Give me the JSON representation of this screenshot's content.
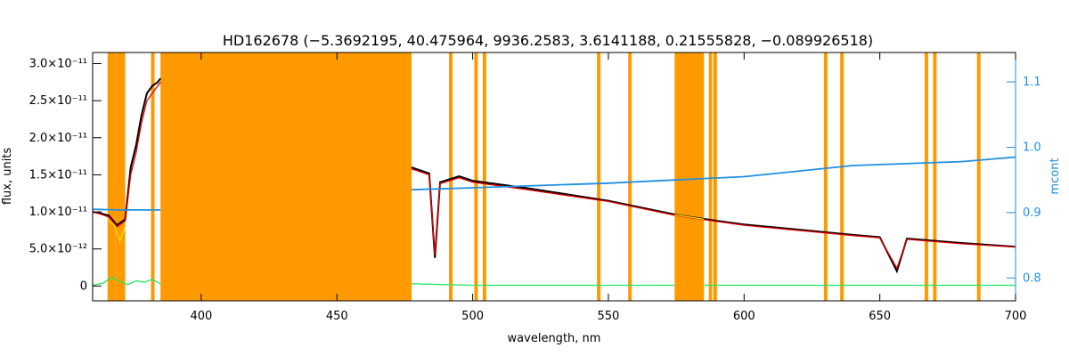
{
  "chart_data": {
    "type": "line",
    "title": "HD162678    (−5.3692195, 40.475964, 9936.2583, 3.6141188, 0.21555828, −0.089926518)",
    "xlabel": "wavelength, nm",
    "ylabel": "flux, units",
    "y2label": "mcont",
    "xlim": [
      360,
      700
    ],
    "ylim": [
      -2e-12,
      3.15e-11
    ],
    "y2lim": [
      0.765,
      1.145
    ],
    "x_ticks": [
      {
        "value": 400,
        "label": "400"
      },
      {
        "value": 450,
        "label": "450"
      },
      {
        "value": 500,
        "label": "500"
      },
      {
        "value": 550,
        "label": "550"
      },
      {
        "value": 600,
        "label": "600"
      },
      {
        "value": 650,
        "label": "650"
      },
      {
        "value": 700,
        "label": "700"
      }
    ],
    "y_ticks": [
      {
        "value": 0,
        "label": "0"
      },
      {
        "value": 5e-12,
        "label": "5.0×10⁻¹²"
      },
      {
        "value": 1e-11,
        "label": "1.0×10⁻¹¹"
      },
      {
        "value": 1.5e-11,
        "label": "1.5×10⁻¹¹"
      },
      {
        "value": 2e-11,
        "label": "2.0×10⁻¹¹"
      },
      {
        "value": 2.5e-11,
        "label": "2.5×10⁻¹¹"
      },
      {
        "value": 3e-11,
        "label": "3.0×10⁻¹¹"
      }
    ],
    "y2_ticks": [
      {
        "value": 0.8,
        "label": "0.8"
      },
      {
        "value": 0.9,
        "label": "0.9"
      },
      {
        "value": 1.0,
        "label": "1.0"
      },
      {
        "value": 1.1,
        "label": "1.1"
      }
    ],
    "masked_regions": [
      [
        365.5,
        368.3
      ],
      [
        368.3,
        372.0
      ],
      [
        381.5,
        382.8
      ],
      [
        385.0,
        477.5
      ],
      [
        491.3,
        492.6
      ],
      [
        500.6,
        501.9
      ],
      [
        503.7,
        505.0
      ],
      [
        545.8,
        547.1
      ],
      [
        557.3,
        558.6
      ],
      [
        574.4,
        585.2
      ],
      [
        587.0,
        588.2
      ],
      [
        588.6,
        590.0
      ],
      [
        629.4,
        630.7
      ],
      [
        635.4,
        636.7
      ],
      [
        666.5,
        667.8
      ],
      [
        669.6,
        670.9
      ],
      [
        685.8,
        687.1
      ]
    ],
    "series": [
      {
        "role": "observed",
        "color": "#000000",
        "segments": [
          {
            "x": [
              360,
              363,
              366,
              369,
              372,
              374,
              376,
              378,
              380,
              382,
              384,
              385
            ],
            "y": [
              1e-11,
              9.8e-12,
              9.5e-12,
              8.2e-12,
              9e-12,
              1.6e-11,
              1.9e-11,
              2.3e-11,
              2.6e-11,
              2.7e-11,
              2.75e-11,
              2.8e-11
            ]
          },
          {
            "x": [
              477.5,
              484,
              486.1,
              488,
              495,
              500,
              520,
              550,
              575,
              590,
              600,
              620,
              640,
              650,
              656.3,
              660,
              680,
              700
            ],
            "y": [
              1.6e-11,
              1.52e-11,
              3.8e-12,
              1.4e-11,
              1.48e-11,
              1.42e-11,
              1.32e-11,
              1.15e-11,
              9.6e-12,
              8.8e-12,
              8.3e-12,
              7.6e-12,
              6.9e-12,
              6.6e-12,
              2e-12,
              6.4e-12,
              5.8e-12,
              5.3e-12
            ]
          }
        ]
      },
      {
        "role": "model",
        "color": "#e00000",
        "segments": [
          {
            "x": [
              360,
              363,
              366,
              369,
              372,
              374,
              376,
              378,
              380,
              382,
              384,
              385
            ],
            "y": [
              1e-11,
              9.7e-12,
              9.3e-12,
              8e-12,
              8.8e-12,
              1.5e-11,
              1.8e-11,
              2.2e-11,
              2.5e-11,
              2.6e-11,
              2.7e-11,
              2.75e-11
            ]
          },
          {
            "x": [
              477.5,
              484,
              486.1,
              488,
              495,
              500,
              520,
              550,
              575,
              590,
              600,
              620,
              640,
              650,
              656.3,
              660,
              680,
              700
            ],
            "y": [
              1.58e-11,
              1.5e-11,
              4.2e-12,
              1.38e-11,
              1.46e-11,
              1.4e-11,
              1.3e-11,
              1.14e-11,
              9.5e-12,
              8.7e-12,
              8.2e-12,
              7.5e-12,
              6.8e-12,
              6.5e-12,
              2.4e-12,
              6.3e-12,
              5.7e-12,
              5.25e-12
            ]
          }
        ]
      },
      {
        "role": "masked-model",
        "color": "#ffe000",
        "segments": [
          {
            "x": [
              365.5,
              368,
              370,
              372
            ],
            "y": [
              9e-12,
              8.2e-12,
              6e-12,
              8e-12
            ]
          },
          {
            "x": [
              574.4,
              580,
              585.2
            ],
            "y": [
              9.6e-12,
              9.3e-12,
              9e-12
            ]
          }
        ]
      },
      {
        "role": "residual",
        "color": "#22e660",
        "segments": [
          {
            "x": [
              360,
              364,
              367,
              370,
              373,
              376,
              379,
              382,
              385
            ],
            "y": [
              1e-13,
              4e-13,
              1.2e-12,
              6e-13,
              2e-13,
              7e-13,
              5e-13,
              9e-13,
              3e-13
            ]
          },
          {
            "x": [
              477.5,
              500,
              550,
              574.4
            ],
            "y": [
              3e-13,
              1e-13,
              1e-13,
              1e-13
            ]
          },
          {
            "x": [
              585.2,
              620,
              660,
              700
            ],
            "y": [
              1e-13,
              1e-13,
              1e-13,
              1e-13
            ]
          }
        ]
      },
      {
        "role": "mcont",
        "axis": "right",
        "color": "#1f8fe0",
        "segments": [
          {
            "x": [
              360,
              370,
              385
            ],
            "y": [
              0.905,
              0.904,
              0.904
            ]
          },
          {
            "x": [
              477.5,
              500,
              550,
              600,
              640,
              680,
              700
            ],
            "y": [
              0.935,
              0.938,
              0.945,
              0.955,
              0.972,
              0.978,
              0.985
            ]
          }
        ]
      }
    ]
  }
}
